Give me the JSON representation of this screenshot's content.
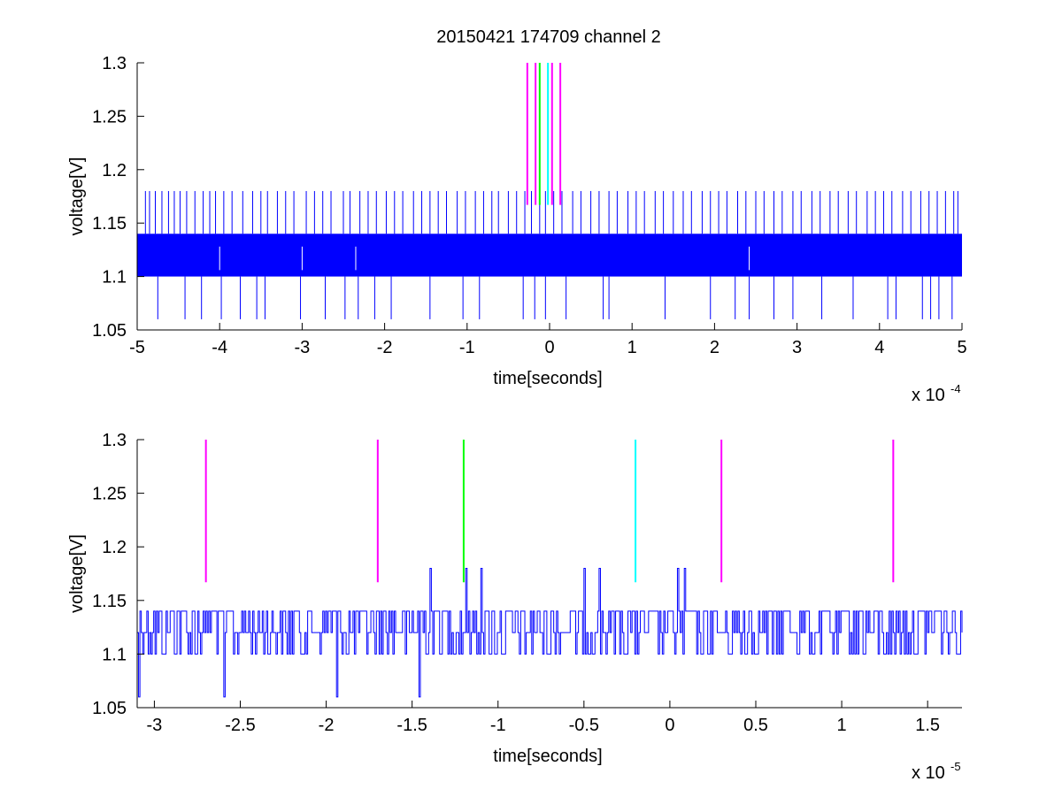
{
  "figure": {
    "title": "20150421 174709 channel 2"
  },
  "chart_data": [
    {
      "type": "line",
      "xlabel": "time[seconds]",
      "ylabel": "voltage[V]",
      "x_multiplier": {
        "base": "x 10",
        "exponent": "-4"
      },
      "xlim": [
        -5,
        5
      ],
      "ylim": [
        1.05,
        1.3
      ],
      "xticks": [
        -5,
        -4,
        -3,
        -2,
        -1,
        0,
        1,
        2,
        3,
        4,
        5
      ],
      "xtick_labels": [
        "-5",
        "-4",
        "-3",
        "-2",
        "-1",
        "0",
        "1",
        "2",
        "3",
        "4",
        "5"
      ],
      "yticks": [
        1.05,
        1.1,
        1.15,
        1.2,
        1.25,
        1.3
      ],
      "ytick_labels": [
        "1.05",
        "1.1",
        "1.15",
        "1.2",
        "1.25",
        "1.3"
      ],
      "grid": false,
      "series": [
        {
          "color": "#0000ff",
          "style": "dense-noise",
          "band": [
            1.1,
            1.14
          ],
          "spikes_up": [
            -4.9,
            -4.85,
            -4.78,
            -4.7,
            -4.62,
            -4.55,
            -4.48,
            -4.4,
            -4.3,
            -4.2,
            -4.12,
            -4.05,
            -3.95,
            -3.85,
            -3.72,
            -3.6,
            -3.5,
            -3.42,
            -3.3,
            -3.2,
            -3.1,
            -2.95,
            -2.85,
            -2.75,
            -2.65,
            -2.5,
            -2.42,
            -2.3,
            -2.2,
            -2.1,
            -1.98,
            -1.88,
            -1.78,
            -1.65,
            -1.55,
            -1.45,
            -1.35,
            -1.25,
            -1.12,
            -1.02,
            -0.9,
            -0.8,
            -0.7,
            -0.62,
            -0.5,
            -0.4,
            -0.3,
            -0.22,
            -0.12,
            -0.05,
            0.05,
            0.15,
            0.28,
            0.38,
            0.5,
            0.6,
            0.72,
            0.82,
            0.95,
            1.05,
            1.15,
            1.28,
            1.38,
            1.5,
            1.62,
            1.72,
            1.85,
            1.95,
            2.05,
            2.15,
            2.28,
            2.38,
            2.5,
            2.6,
            2.72,
            2.82,
            2.95,
            3.05,
            3.18,
            3.28,
            3.4,
            3.5,
            3.62,
            3.72,
            3.85,
            3.95,
            4.05,
            4.15,
            4.28,
            4.38,
            4.5,
            4.6,
            4.7,
            4.8,
            4.9,
            4.95
          ],
          "spikes_down": [
            -4.75,
            -4.42,
            -4.22,
            -3.98,
            -3.75,
            -3.55,
            -3.45,
            -3.02,
            -2.72,
            -2.48,
            -2.32,
            -2.12,
            -1.92,
            -1.45,
            -1.05,
            -0.85,
            -0.32,
            -0.18,
            -0.05,
            0.2,
            0.65,
            0.72,
            1.4,
            1.95,
            2.25,
            2.42,
            2.72,
            2.95,
            3.3,
            3.68,
            4.1,
            4.2,
            4.52,
            4.62,
            4.72,
            4.88
          ]
        }
      ],
      "markers": [
        {
          "x": -0.27,
          "color": "#ff00ff"
        },
        {
          "x": -0.17,
          "color": "#ff00ff"
        },
        {
          "x": -0.12,
          "color": "#00ff00"
        },
        {
          "x": -0.02,
          "color": "#00ffff"
        },
        {
          "x": 0.03,
          "color": "#ff00ff"
        },
        {
          "x": 0.13,
          "color": "#ff00ff"
        }
      ],
      "marker_range": [
        1.167,
        1.3
      ]
    },
    {
      "type": "line",
      "xlabel": "time[seconds]",
      "ylabel": "voltage[V]",
      "x_multiplier": {
        "base": "x 10",
        "exponent": "-5"
      },
      "xlim": [
        -3.1,
        1.7
      ],
      "ylim": [
        1.05,
        1.3
      ],
      "xticks": [
        -3,
        -2.5,
        -2,
        -1.5,
        -1,
        -0.5,
        0,
        0.5,
        1,
        1.5
      ],
      "xtick_labels": [
        "-3",
        "-2.5",
        "-2",
        "-1.5",
        "-1",
        "-0.5",
        "0",
        "0.5",
        "1",
        "1.5"
      ],
      "yticks": [
        1.05,
        1.1,
        1.15,
        1.2,
        1.25,
        1.3
      ],
      "ytick_labels": [
        "1.05",
        "1.1",
        "1.15",
        "1.2",
        "1.25",
        "1.3"
      ],
      "grid": false,
      "series": [
        {
          "color": "#0000ff",
          "style": "step-noise",
          "levels": [
            1.1,
            1.12,
            1.14
          ],
          "events": [
            {
              "x": -3.09,
              "y": 1.06
            },
            {
              "x": -2.6,
              "y": 1.06
            },
            {
              "x": -1.94,
              "y": 1.06
            },
            {
              "x": -1.46,
              "y": 1.06
            },
            {
              "x": -1.4,
              "y": 1.18
            },
            {
              "x": -1.19,
              "y": 1.18
            },
            {
              "x": -1.1,
              "y": 1.18
            },
            {
              "x": -0.5,
              "y": 1.18
            },
            {
              "x": -0.41,
              "y": 1.18
            },
            {
              "x": 0.04,
              "y": 1.18
            },
            {
              "x": 0.08,
              "y": 1.18
            }
          ]
        }
      ],
      "markers": [
        {
          "x": -2.7,
          "color": "#ff00ff"
        },
        {
          "x": -1.7,
          "color": "#ff00ff"
        },
        {
          "x": -1.2,
          "color": "#00ff00"
        },
        {
          "x": -0.2,
          "color": "#00ffff"
        },
        {
          "x": 0.3,
          "color": "#ff00ff"
        },
        {
          "x": 1.3,
          "color": "#ff00ff"
        }
      ],
      "marker_range": [
        1.167,
        1.3
      ]
    }
  ]
}
